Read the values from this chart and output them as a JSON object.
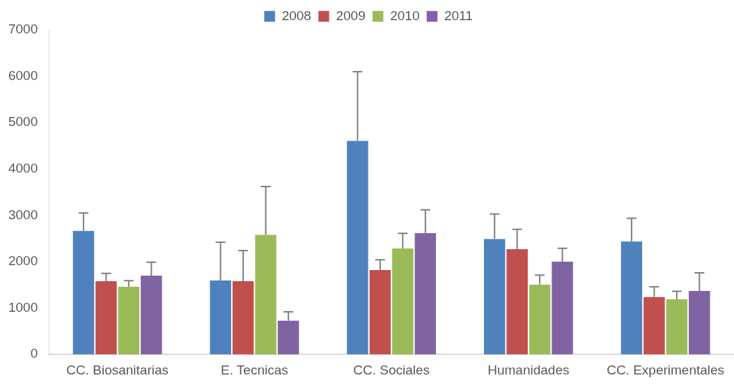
{
  "chart_data": {
    "type": "bar",
    "categories": [
      "CC. Biosanitarias",
      "E. Tecnicas",
      "CC. Sociales",
      "Humanidades",
      "CC. Experimentales"
    ],
    "series": [
      {
        "name": "2008",
        "color": "#4f81bd",
        "values": [
          2670,
          1600,
          4610,
          2490,
          2440
        ],
        "errors": [
          [
            2670,
            3050
          ],
          [
            1600,
            2420
          ],
          [
            4610,
            6100
          ],
          [
            2490,
            3030
          ],
          [
            2440,
            2940
          ]
        ]
      },
      {
        "name": "2009",
        "color": "#c0504d",
        "values": [
          1580,
          1580,
          1820,
          2270,
          1240
        ],
        "errors": [
          [
            1580,
            1750
          ],
          [
            1580,
            2240
          ],
          [
            1820,
            2040
          ],
          [
            2270,
            2700
          ],
          [
            1240,
            1460
          ]
        ]
      },
      {
        "name": "2010",
        "color": "#9bbb59",
        "values": [
          1460,
          2580,
          2290,
          1510,
          1190
        ],
        "errors": [
          [
            1460,
            1590
          ],
          [
            2580,
            3620
          ],
          [
            2290,
            2610
          ],
          [
            1510,
            1710
          ],
          [
            1190,
            1360
          ]
        ]
      },
      {
        "name": "2011",
        "color": "#8064a2",
        "values": [
          1700,
          730,
          2620,
          2000,
          1370
        ],
        "errors": [
          [
            1700,
            1990
          ],
          [
            730,
            920
          ],
          [
            2620,
            3120
          ],
          [
            2000,
            2290
          ],
          [
            1370,
            1760
          ]
        ]
      }
    ],
    "ylim": [
      0,
      7000
    ],
    "yticks": [
      0,
      1000,
      2000,
      3000,
      4000,
      5000,
      6000,
      7000
    ],
    "grid": false,
    "legend": "top"
  }
}
